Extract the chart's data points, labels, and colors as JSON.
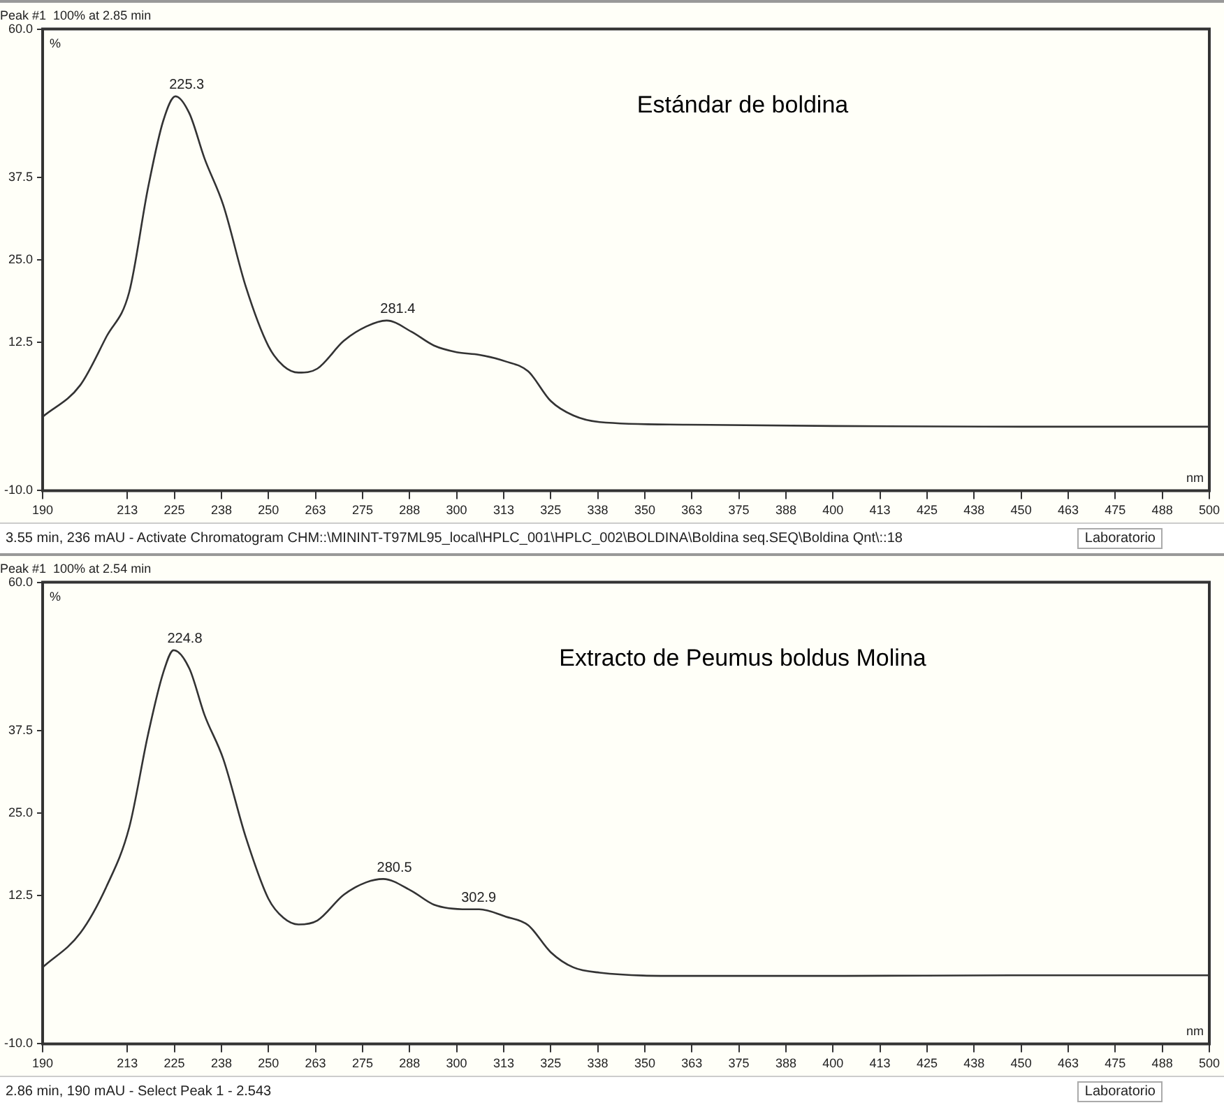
{
  "chart_data": [
    {
      "type": "line",
      "title": "Peak #1  100% at 2.85 min",
      "xlabel": "nm",
      "ylabel": "%",
      "xlim": [
        190,
        500
      ],
      "ylim": [
        -10,
        60
      ],
      "xticks": [
        190,
        {
          "value": 212.5,
          "label": "213"
        },
        225,
        {
          "value": 237.5,
          "label": "238"
        },
        250,
        {
          "value": 262.5,
          "label": "263"
        },
        275,
        {
          "value": 287.5,
          "label": "288"
        },
        300,
        {
          "value": 312.5,
          "label": "313"
        },
        325,
        {
          "value": 337.5,
          "label": "338"
        },
        350,
        {
          "value": 362.5,
          "label": "363"
        },
        375,
        {
          "value": 387.5,
          "label": "388"
        },
        400,
        {
          "value": 412.5,
          "label": "413"
        },
        425,
        {
          "value": 437.5,
          "label": "438"
        },
        450,
        {
          "value": 462.5,
          "label": "463"
        },
        475,
        {
          "value": 487.5,
          "label": "488"
        },
        500
      ],
      "yticks": [
        {
          "value": -10,
          "label": "-10.0"
        },
        {
          "value": 12.5,
          "label": "12.5"
        },
        {
          "value": 25,
          "label": "25.0"
        },
        {
          "value": 37.5,
          "label": "37.5"
        },
        {
          "value": 60,
          "label": "60.0"
        }
      ],
      "x": [
        190,
        200,
        207,
        213,
        218,
        222,
        225.3,
        229,
        233,
        238,
        244,
        250,
        254,
        258,
        263,
        270,
        276,
        281.4,
        288,
        294,
        300,
        306,
        313,
        319,
        325,
        331,
        338,
        361,
        400,
        450,
        500
      ],
      "series": [
        {
          "color": "#333333",
          "values": [
            1.2,
            6,
            13.4,
            20.1,
            35.9,
            46,
            49.8,
            47.2,
            40.4,
            33.3,
            20.9,
            11.9,
            8.9,
            7.9,
            8.5,
            12.7,
            14.9,
            15.8,
            14.1,
            12,
            11,
            10.6,
            9.6,
            8.1,
            3.6,
            1.4,
            0.4,
            0,
            -0.2,
            -0.3,
            -0.3
          ]
        }
      ],
      "annotations": [
        {
          "text": "225.3",
          "x": 225.3,
          "y": 49.8
        },
        {
          "text": "281.4",
          "x": 281.4,
          "y": 15.8
        },
        "Estándar de boldina",
        "3.55 min, 236 mAU - Activate Chromatogram CHM::\\MININT-T97ML95_local\\HPLC_001\\HPLC_002\\BOLDINA\\Boldina seq.SEQ\\Boldina Qnt\\::18",
        "Laboratorio"
      ]
    },
    {
      "type": "line",
      "title": "Peak #1  100% at 2.54 min",
      "xlabel": "nm",
      "ylabel": "%",
      "xlim": [
        190,
        500
      ],
      "ylim": [
        -10,
        60
      ],
      "xticks": [
        190,
        {
          "value": 212.5,
          "label": "213"
        },
        225,
        {
          "value": 237.5,
          "label": "238"
        },
        250,
        {
          "value": 262.5,
          "label": "263"
        },
        275,
        {
          "value": 287.5,
          "label": "288"
        },
        300,
        {
          "value": 312.5,
          "label": "313"
        },
        325,
        {
          "value": 337.5,
          "label": "338"
        },
        350,
        {
          "value": 362.5,
          "label": "363"
        },
        375,
        {
          "value": 387.5,
          "label": "388"
        },
        400,
        {
          "value": 412.5,
          "label": "413"
        },
        425,
        {
          "value": 437.5,
          "label": "438"
        },
        450,
        {
          "value": 462.5,
          "label": "463"
        },
        475,
        {
          "value": 487.5,
          "label": "488"
        },
        500
      ],
      "yticks": [
        {
          "value": -10,
          "label": "-10.0"
        },
        {
          "value": 12.5,
          "label": "12.5"
        },
        {
          "value": 25,
          "label": "25.0"
        },
        {
          "value": 37.5,
          "label": "37.5"
        },
        {
          "value": 60,
          "label": "60.0"
        }
      ],
      "x": [
        190,
        200,
        207,
        213,
        218,
        222,
        224.8,
        229,
        233,
        238,
        244,
        250,
        254,
        258,
        263,
        270,
        276,
        280.5,
        288,
        294,
        302.9,
        306,
        313,
        319,
        325,
        331,
        338,
        361,
        400,
        450,
        500
      ],
      "series": [
        {
          "color": "#333333",
          "values": [
            1.6,
            6.8,
            13.9,
            22.8,
            36.9,
            46.2,
            49.7,
            46.9,
            39.9,
            33.2,
            21.3,
            12,
            9.1,
            8.1,
            8.7,
            12.6,
            14.5,
            15,
            13.2,
            11.1,
            10.4,
            10.4,
            9.3,
            8,
            3.9,
            1.6,
            0.8,
            0.3,
            0.3,
            0.4,
            0.4
          ]
        }
      ],
      "annotations": [
        {
          "text": "224.8",
          "x": 224.8,
          "y": 49.7
        },
        {
          "text": "280.5",
          "x": 280.5,
          "y": 15
        },
        {
          "text": "302.9",
          "x": 302.9,
          "y": 10.4
        },
        "Extracto de Peumus boldus Molina",
        "2.86 min, 190 mAU - Select Peak 1 - 2.543",
        "Laboratorio"
      ]
    }
  ]
}
